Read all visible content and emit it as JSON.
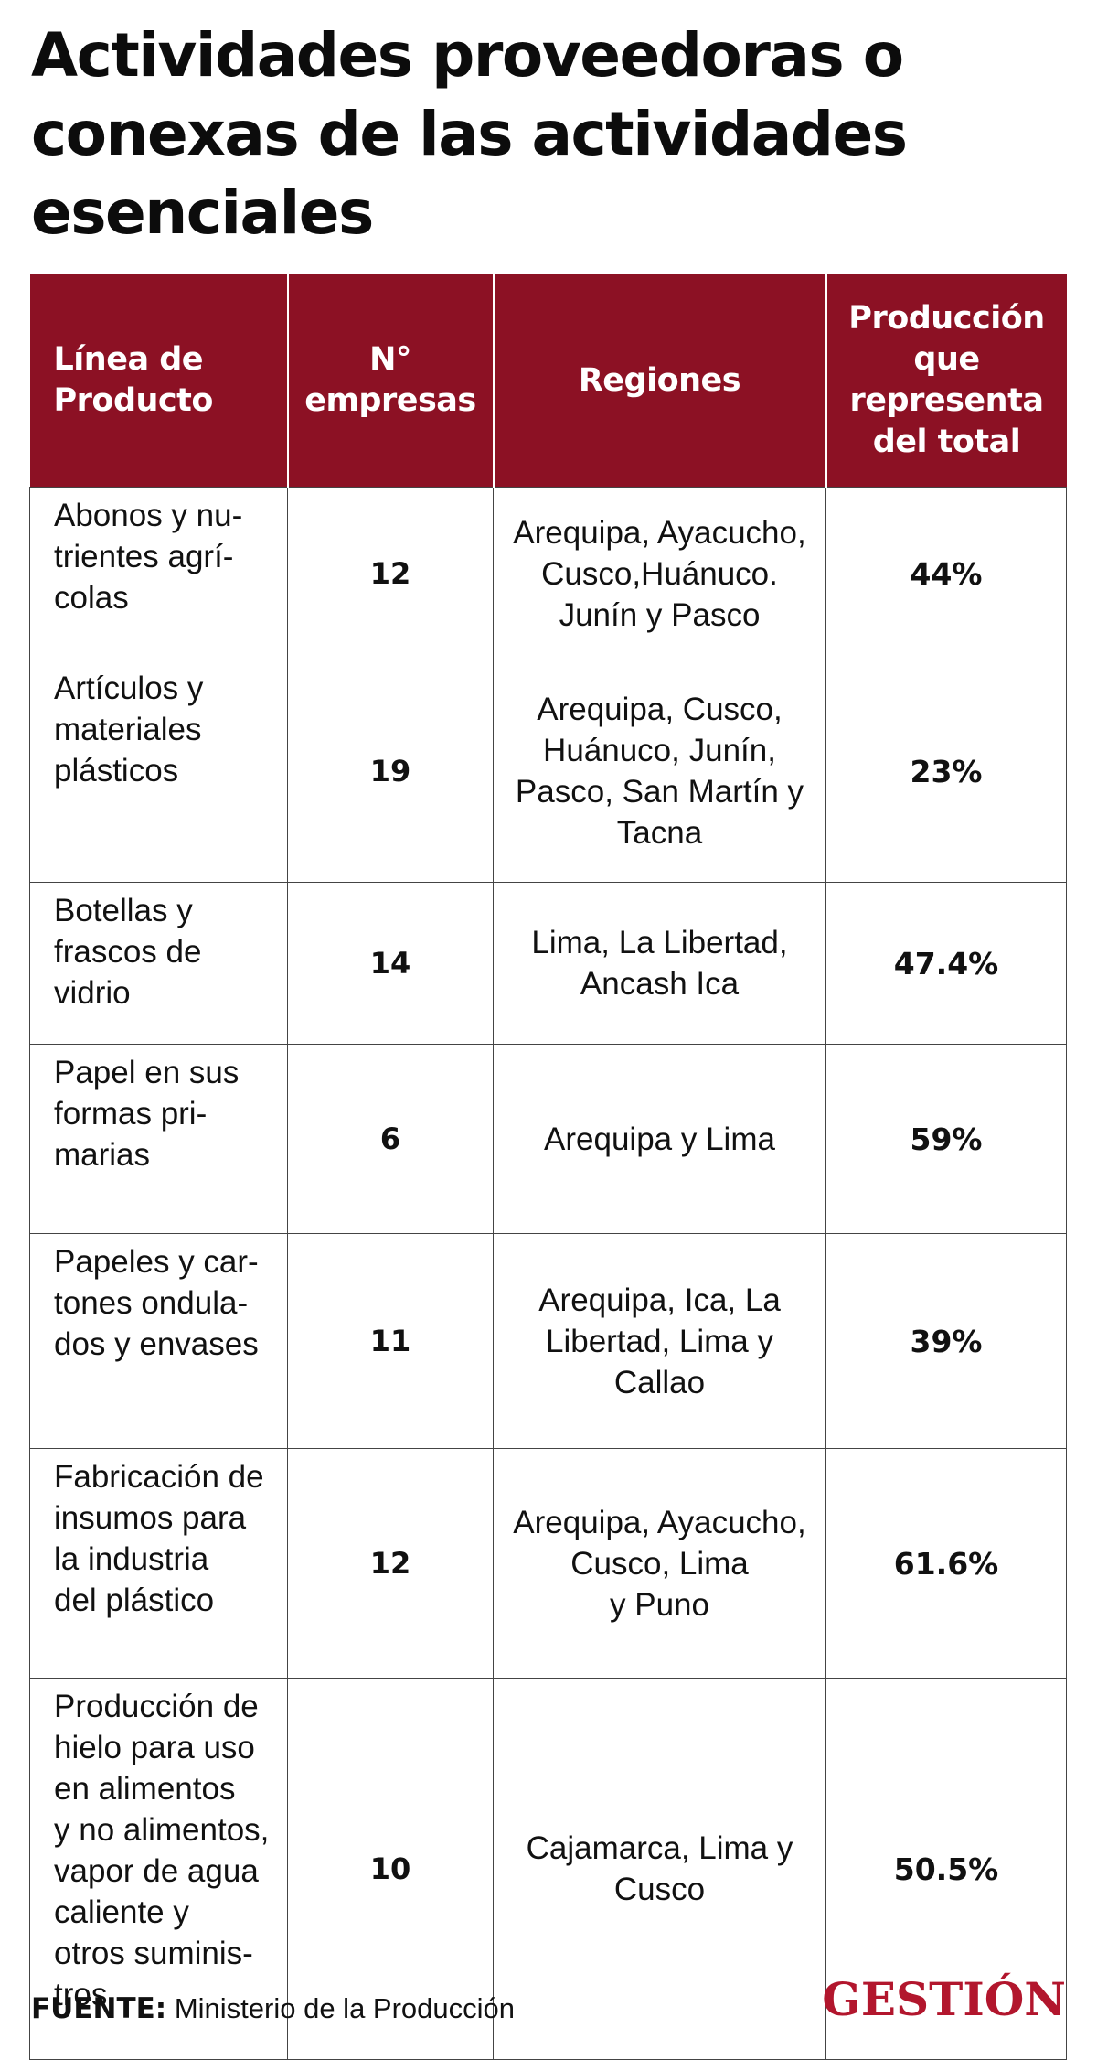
{
  "title": "Actividades proveedoras o conexas de las actividades esenciales",
  "chart_data": {
    "type": "table",
    "columns": [
      "Línea de Producto",
      "N° empresas",
      "Regiones",
      "Producción que representa del total"
    ],
    "rows": [
      {
        "product": "Abonos y nu-\ntrientes agrí-\ncolas",
        "empresas": "12",
        "regiones": "Arequipa, Ayacucho,\nCusco,Huánuco.\nJunín y Pasco",
        "produccion": "44%"
      },
      {
        "product": "Artículos y\nmateriales\nplásticos",
        "empresas": "19",
        "regiones": "Arequipa, Cusco,\nHuánuco, Junín,\nPasco, San Martín y\nTacna",
        "produccion": "23%"
      },
      {
        "product": "Botellas y\nfrascos de\nvidrio",
        "empresas": "14",
        "regiones": "Lima, La Libertad,\nAncash Ica",
        "produccion": "47.4%"
      },
      {
        "product": "Papel en sus\nformas pri-\nmarias",
        "empresas": "6",
        "regiones": "Arequipa y Lima",
        "produccion": "59%"
      },
      {
        "product": "Papeles y car-\ntones ondula-\ndos y envases",
        "empresas": "11",
        "regiones": "Arequipa, Ica, La\nLibertad, Lima y\nCallao",
        "produccion": "39%"
      },
      {
        "product": "Fabricación de\ninsumos para\nla industria\ndel plástico",
        "empresas": "12",
        "regiones": "Arequipa, Ayacucho,\nCusco, Lima\ny Puno",
        "produccion": "61.6%"
      },
      {
        "product": "Producción de\nhielo para uso\nen alimentos\ny no alimentos,\nvapor de agua\ncaliente y\notros suminis-\ntros",
        "empresas": "10",
        "regiones": "Cajamarca, Lima y\nCusco",
        "produccion": "50.5%"
      }
    ]
  },
  "footer": {
    "source_label": "FUENTE:",
    "source_text": "Ministerio de la Producción"
  },
  "brand": {
    "logo_text": "GESTIÓN"
  },
  "colors": {
    "header_bg": "#8c1124",
    "header_text": "#ffffff",
    "logo": "#b2162d",
    "grid": "#444444"
  }
}
